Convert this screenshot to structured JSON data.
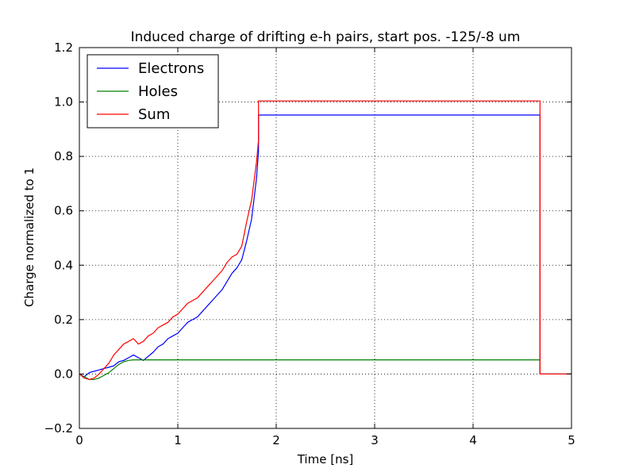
{
  "chart_data": {
    "type": "line",
    "title": "Induced charge of drifting e-h pairs, start pos. -125/-8 um",
    "xlabel": "Time [ns]",
    "ylabel": "Charge normalized to 1",
    "xlim": [
      0,
      5
    ],
    "ylim": [
      -0.2,
      1.2
    ],
    "xticks": [
      0,
      1,
      2,
      3,
      4,
      5
    ],
    "xtick_labels": [
      "0",
      "1",
      "2",
      "3",
      "4",
      "5"
    ],
    "yticks": [
      -0.2,
      0.0,
      0.2,
      0.4,
      0.6,
      0.8,
      1.0,
      1.2
    ],
    "ytick_labels": [
      "−0.2",
      "0.0",
      "0.2",
      "0.4",
      "0.6",
      "0.8",
      "1.0",
      "1.2"
    ],
    "grid": true,
    "legend_position": "top-left",
    "series": [
      {
        "name": "Electrons",
        "color": "#0000ff",
        "x": [
          0,
          0.05,
          0.1,
          0.15,
          0.2,
          0.25,
          0.3,
          0.35,
          0.4,
          0.45,
          0.5,
          0.55,
          0.6,
          0.65,
          0.7,
          0.75,
          0.8,
          0.85,
          0.9,
          0.95,
          1.0,
          1.05,
          1.1,
          1.15,
          1.2,
          1.25,
          1.3,
          1.35,
          1.4,
          1.45,
          1.5,
          1.55,
          1.6,
          1.65,
          1.7,
          1.75,
          1.8,
          1.82,
          1.82,
          4.68,
          4.68,
          5.0
        ],
        "y": [
          0.0,
          -0.01,
          0.005,
          0.01,
          0.015,
          0.02,
          0.025,
          0.03,
          0.045,
          0.05,
          0.06,
          0.07,
          0.06,
          0.05,
          0.065,
          0.08,
          0.1,
          0.11,
          0.13,
          0.14,
          0.15,
          0.17,
          0.19,
          0.2,
          0.21,
          0.23,
          0.25,
          0.27,
          0.29,
          0.31,
          0.34,
          0.37,
          0.39,
          0.42,
          0.49,
          0.57,
          0.72,
          0.82,
          0.952,
          0.952,
          0.0,
          0.0
        ]
      },
      {
        "name": "Holes",
        "color": "#008000",
        "x": [
          0,
          0.05,
          0.1,
          0.15,
          0.2,
          0.25,
          0.3,
          0.35,
          0.4,
          0.45,
          0.5,
          0.55,
          4.68,
          4.68,
          5.0
        ],
        "y": [
          0.0,
          -0.01,
          -0.02,
          -0.02,
          -0.015,
          -0.005,
          0.005,
          0.02,
          0.035,
          0.045,
          0.05,
          0.052,
          0.052,
          0.0,
          0.0
        ]
      },
      {
        "name": "Sum",
        "color": "#ff0000",
        "x": [
          0,
          0.05,
          0.1,
          0.15,
          0.2,
          0.25,
          0.3,
          0.35,
          0.4,
          0.45,
          0.5,
          0.55,
          0.6,
          0.65,
          0.7,
          0.75,
          0.8,
          0.85,
          0.9,
          0.95,
          1.0,
          1.05,
          1.1,
          1.15,
          1.2,
          1.25,
          1.3,
          1.35,
          1.4,
          1.45,
          1.5,
          1.55,
          1.6,
          1.65,
          1.7,
          1.75,
          1.8,
          1.82,
          1.82,
          4.68,
          4.68,
          5.0
        ],
        "y": [
          0.0,
          -0.015,
          -0.02,
          -0.015,
          0.0,
          0.02,
          0.04,
          0.07,
          0.09,
          0.11,
          0.12,
          0.13,
          0.11,
          0.12,
          0.14,
          0.15,
          0.17,
          0.18,
          0.19,
          0.21,
          0.22,
          0.24,
          0.26,
          0.27,
          0.28,
          0.3,
          0.32,
          0.34,
          0.36,
          0.38,
          0.41,
          0.43,
          0.44,
          0.47,
          0.56,
          0.64,
          0.78,
          0.86,
          1.004,
          1.004,
          0.0,
          0.0
        ]
      }
    ]
  }
}
